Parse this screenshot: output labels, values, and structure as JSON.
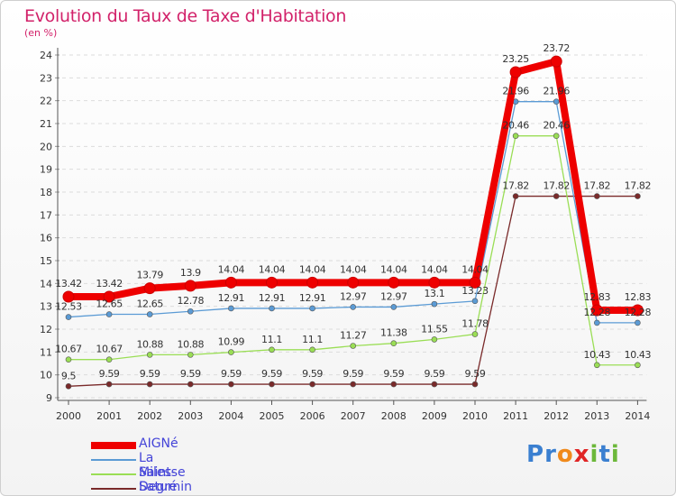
{
  "header": {
    "title": "Evolution du Taux de Taxe d'Habitation",
    "unit": "(en %)"
  },
  "logo": {
    "text": "Proxiti",
    "letters": [
      "P",
      "r",
      "o",
      "x",
      "i",
      "t",
      "i"
    ],
    "colors": [
      "#3a7fd0",
      "#3a7fd0",
      "#f08a1c",
      "#e02525",
      "#6cb83a",
      "#3a7fd0",
      "#6cb83a"
    ]
  },
  "chart_data": {
    "type": "line",
    "title": "Evolution du Taux de Taxe d'Habitation",
    "xlabel": "",
    "ylabel": "(en %)",
    "x": [
      "2000",
      "2001",
      "2002",
      "2003",
      "2004",
      "2005",
      "2006",
      "2007",
      "2008",
      "2009",
      "2010",
      "2011",
      "2012",
      "2013",
      "2014"
    ],
    "ylim": [
      9,
      24
    ],
    "yticks": [
      "9",
      "10",
      "11",
      "12",
      "13",
      "14",
      "15",
      "16",
      "17",
      "18",
      "19",
      "20",
      "21",
      "22",
      "23",
      "24"
    ],
    "grid": "horizontal dashed",
    "legend_position": "bottom-left",
    "series": [
      {
        "name": "Degré",
        "color": "#7a2a2a",
        "values": [
          9.5,
          9.59,
          9.59,
          9.59,
          9.59,
          9.59,
          9.59,
          9.59,
          9.59,
          9.59,
          9.59,
          17.82,
          17.82,
          17.82,
          17.82
        ],
        "labels": [
          "9.5",
          "9.59",
          "9.59",
          "9.59",
          "9.59",
          "9.59",
          "9.59",
          "9.59",
          "9.59",
          "9.59",
          "9.59",
          "17.82",
          "17.82",
          "17.82",
          "17.82"
        ]
      },
      {
        "name": "Saint-Saturnin",
        "color": "#9ade55",
        "values": [
          10.67,
          10.67,
          10.88,
          10.88,
          10.99,
          11.1,
          11.1,
          11.27,
          11.38,
          11.55,
          11.78,
          20.46,
          20.46,
          10.43,
          10.43
        ],
        "labels": [
          "10.67",
          "10.67",
          "10.88",
          "10.88",
          "10.99",
          "11.1",
          "11.1",
          "11.27",
          "11.38",
          "11.55",
          "11.78",
          "20.46",
          "20.46",
          "10.43",
          "10.43"
        ]
      },
      {
        "name": "La Milesse",
        "color": "#5b9bd5",
        "values": [
          12.53,
          12.65,
          12.65,
          12.78,
          12.91,
          12.91,
          12.91,
          12.97,
          12.97,
          13.1,
          13.23,
          21.96,
          21.96,
          12.28,
          12.28
        ],
        "labels": [
          "12.53",
          "12.65",
          "12.65",
          "12.78",
          "12.91",
          "12.91",
          "12.91",
          "12.97",
          "12.97",
          "13.1",
          "13.23",
          "21.96",
          "21.96",
          "12.28",
          "12.28"
        ]
      },
      {
        "name": "AIGNé",
        "color": "#ee0000",
        "values": [
          13.42,
          13.42,
          13.79,
          13.9,
          14.04,
          14.04,
          14.04,
          14.04,
          14.04,
          14.04,
          14.04,
          23.25,
          23.72,
          12.83,
          12.83
        ],
        "labels": [
          "13.42",
          "13.42",
          "13.79",
          "13.9",
          "14.04",
          "14.04",
          "14.04",
          "14.04",
          "14.04",
          "14.04",
          "14.04",
          "23.25",
          "23.72",
          "12.83",
          "12.83"
        ]
      }
    ],
    "legend_order": [
      "AIGNé",
      "La Milesse",
      "Saint-Saturnin",
      "Degré"
    ]
  }
}
